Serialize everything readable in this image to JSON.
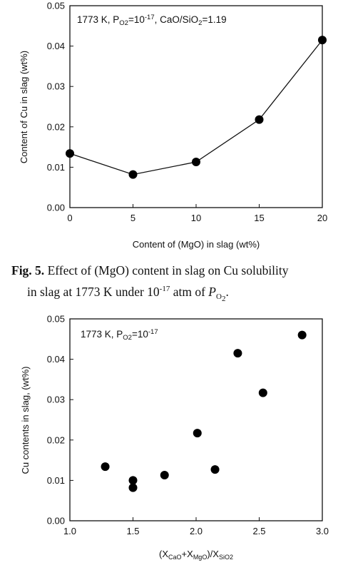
{
  "chart_data": [
    {
      "type": "line",
      "annotation": {
        "main": "1773 K, P",
        "sub1": "O2",
        "mid1": "=10",
        "sup1": "-17",
        "mid2": ", CaO/SiO",
        "sub2": "2",
        "end": "=1.19"
      },
      "xlabel": "Content of (MgO) in slag (wt%)",
      "ylabel": "Content of Cu in slag (wt%)",
      "xlim": [
        0,
        20
      ],
      "ylim": [
        0,
        0.05
      ],
      "xticks": [
        "0",
        "5",
        "10",
        "15",
        "20"
      ],
      "yticks": [
        "0.00",
        "0.01",
        "0.02",
        "0.03",
        "0.04",
        "0.05"
      ],
      "grid": false,
      "series": [
        {
          "x": [
            0,
            5,
            10,
            15,
            20
          ],
          "values": [
            0.0134,
            0.0082,
            0.0113,
            0.0218,
            0.0415
          ]
        }
      ]
    },
    {
      "type": "scatter",
      "annotation": {
        "main": "1773 K, P",
        "sub1": "O2",
        "mid1": "=10",
        "sup1": "-17"
      },
      "xlabel": {
        "p1": "(X",
        "s1": "CaO",
        "p2": "+X",
        "s2": "MgO",
        "p3": ")/X",
        "s3": "SiO2"
      },
      "ylabel": "Cu contents in slag, (wt%)",
      "xlim": [
        1.0,
        3.0
      ],
      "ylim": [
        0,
        0.05
      ],
      "xticks": [
        "1.0",
        "1.5",
        "2.0",
        "2.5",
        "3.0"
      ],
      "yticks": [
        "0.00",
        "0.01",
        "0.02",
        "0.03",
        "0.04",
        "0.05"
      ],
      "grid": false,
      "series": [
        {
          "x": [
            1.28,
            1.5,
            1.5,
            1.75,
            2.01,
            2.15,
            2.33,
            2.53,
            2.84
          ],
          "values": [
            0.0134,
            0.0082,
            0.01,
            0.0113,
            0.0217,
            0.0127,
            0.0415,
            0.0317,
            0.046
          ]
        }
      ]
    }
  ],
  "caption": {
    "label": "Fig. 5.",
    "text1": " Effect of (MgO) content in slag on Cu solubility",
    "text2": "in slag at 1773 K under 10",
    "sup": "-17",
    "text3": " atm of ",
    "p": "P",
    "sub": "O",
    "subsub": "2",
    "end": "."
  }
}
